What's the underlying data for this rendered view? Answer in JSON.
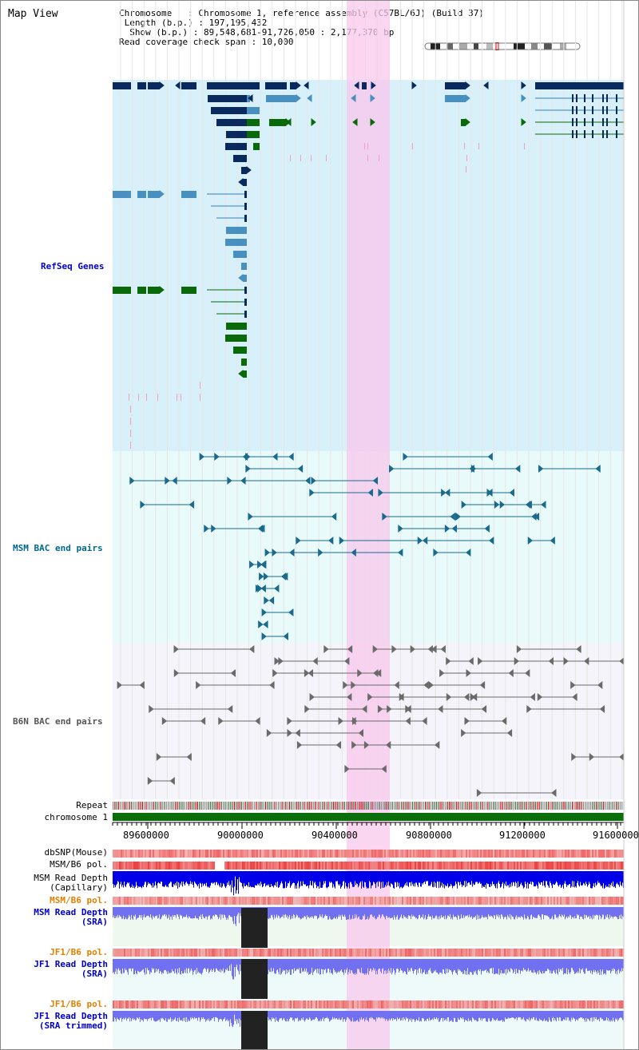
{
  "title": "Map View",
  "info": {
    "chromosome": "Chromosome   : Chromosome 1, reference assembly (C57BL/6J) (Build 37)",
    "length": " Length (b.p.) : 197,195,432",
    "show": "  Show (b.p.) : 89,548,681-91,726,050 : 2,177,370 bp",
    "span": "Read coverage check span : 10,000"
  },
  "tracks": {
    "refseq": "RefSeq Genes",
    "msm_bac": "MSM BAC end pairs",
    "b6n_bac": "B6N BAC end pairs",
    "repeat": "Repeat",
    "chromosome": "chromosome 1",
    "dbsnp": "dbSNP(Mouse)",
    "msm_b6_pol": "MSM/B6 pol.",
    "msm_depth_cap_1": "MSM Read Depth",
    "msm_depth_cap_2": "(Capillary)",
    "msm_b6_pol2": "MSM/B6 pol.",
    "msm_depth_sra_1": "MSM Read Depth",
    "msm_depth_sra_2": "(SRA)",
    "jf1_pol": "JF1/B6 pol.",
    "jf1_depth_1": "JF1 Read Depth",
    "jf1_depth_2": "(SRA)",
    "jf1_pol2": "JF1/B6 pol.",
    "jf1_depth_trim_1": "JF1 Read Depth",
    "jf1_depth_trim_2": "(SRA trimmed)"
  },
  "axis": {
    "ticks": [
      "89600000",
      "90000000",
      "90400000",
      "90800000",
      "91200000",
      "91600000"
    ]
  },
  "colors": {
    "refseq_bg": "#d8f0fa",
    "msm_bg": "#e8fafa",
    "b6n_bg": "#f4f4fa",
    "highlight": "#f8c8ec",
    "gene_dark": "#0a2a5e",
    "gene_light": "#4890c0",
    "gene_green": "#0a6a0a",
    "chromosome_bar": "#0a6e0a",
    "depth_blue": "#0000e8",
    "depth_lavender": "#7070f0"
  }
}
